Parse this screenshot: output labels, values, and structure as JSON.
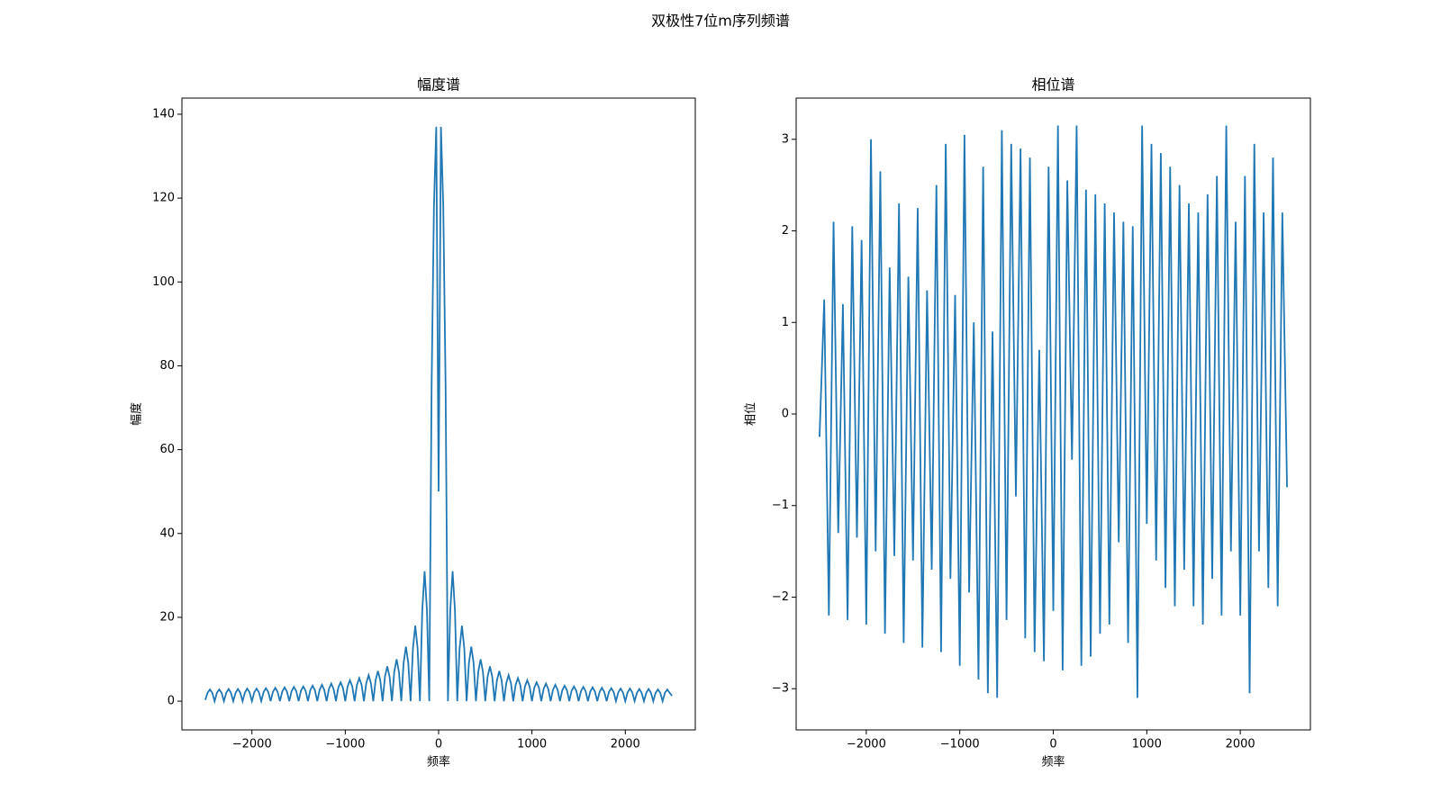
{
  "title": "双极性7位m序列频谱",
  "chart_data": [
    {
      "type": "line",
      "title": "幅度谱",
      "xlabel": "频率",
      "ylabel": "幅度",
      "color": "#1f77b4",
      "x": [
        -2500,
        -2475,
        -2450,
        -2425,
        -2400,
        -2375,
        -2350,
        -2325,
        -2300,
        -2275,
        -2250,
        -2225,
        -2200,
        -2175,
        -2150,
        -2125,
        -2100,
        -2075,
        -2050,
        -2025,
        -2000,
        -1975,
        -1950,
        -1925,
        -1900,
        -1875,
        -1850,
        -1825,
        -1800,
        -1775,
        -1750,
        -1725,
        -1700,
        -1675,
        -1650,
        -1625,
        -1600,
        -1575,
        -1550,
        -1525,
        -1500,
        -1475,
        -1450,
        -1425,
        -1400,
        -1375,
        -1350,
        -1325,
        -1300,
        -1275,
        -1250,
        -1225,
        -1200,
        -1175,
        -1150,
        -1125,
        -1100,
        -1075,
        -1050,
        -1025,
        -1000,
        -975,
        -950,
        -925,
        -900,
        -875,
        -850,
        -825,
        -800,
        -775,
        -750,
        -725,
        -700,
        -675,
        -650,
        -625,
        -600,
        -575,
        -550,
        -525,
        -500,
        -475,
        -450,
        -425,
        -400,
        -375,
        -350,
        -325,
        -300,
        -275,
        -250,
        -225,
        -200,
        -175,
        -150,
        -125,
        -100,
        -75,
        -50,
        -25,
        0,
        25,
        50,
        75,
        100,
        125,
        150,
        175,
        200,
        225,
        250,
        275,
        300,
        325,
        350,
        375,
        400,
        425,
        450,
        475,
        500,
        525,
        550,
        575,
        600,
        625,
        650,
        675,
        700,
        725,
        750,
        775,
        800,
        825,
        850,
        875,
        900,
        925,
        950,
        975,
        1000,
        1025,
        1050,
        1075,
        1100,
        1125,
        1150,
        1175,
        1200,
        1225,
        1250,
        1275,
        1300,
        1325,
        1350,
        1375,
        1400,
        1425,
        1450,
        1475,
        1500,
        1525,
        1550,
        1575,
        1600,
        1625,
        1650,
        1675,
        1700,
        1725,
        1750,
        1775,
        1800,
        1825,
        1850,
        1875,
        1900,
        1925,
        1950,
        1975,
        2000,
        2025,
        2050,
        2075,
        2100,
        2125,
        2150,
        2175,
        2200,
        2225,
        2250,
        2275,
        2300,
        2325,
        2350,
        2375,
        2400,
        2425,
        2450,
        2475,
        2500
      ],
      "values": [
        0.3,
        2.0,
        2.8,
        2.0,
        0,
        2.0,
        2.8,
        2.0,
        0,
        2.0,
        2.9,
        2.0,
        0,
        2.0,
        2.9,
        2.0,
        0,
        2.1,
        3.0,
        2.1,
        0,
        2.1,
        3.0,
        2.1,
        0,
        2.2,
        3.1,
        2.2,
        0,
        2.2,
        3.2,
        2.2,
        0,
        2.3,
        3.3,
        2.3,
        0,
        2.4,
        3.4,
        2.4,
        0,
        2.5,
        3.5,
        2.5,
        0,
        2.6,
        3.7,
        2.6,
        0,
        2.7,
        3.9,
        2.7,
        0,
        2.9,
        4.2,
        2.9,
        0,
        3.2,
        4.5,
        3.2,
        0,
        3.5,
        5.0,
        3.5,
        0,
        3.9,
        5.5,
        3.9,
        0,
        4.3,
        6.2,
        4.3,
        0,
        5.0,
        7.2,
        5.0,
        0,
        5.8,
        8.3,
        5.8,
        0,
        7.0,
        10,
        7.0,
        0,
        9.1,
        13,
        9.1,
        0,
        12.6,
        18,
        12.6,
        0,
        21.7,
        31,
        21.7,
        0,
        75,
        118,
        137,
        50,
        137,
        118,
        75,
        0,
        21.7,
        31,
        21.7,
        0,
        12.6,
        18,
        12.6,
        0,
        9.1,
        13,
        9.1,
        0,
        7.0,
        10,
        7.0,
        0,
        5.8,
        8.3,
        5.8,
        0,
        5.0,
        7.2,
        5.0,
        0,
        4.3,
        6.2,
        4.3,
        0,
        3.9,
        5.5,
        3.9,
        0,
        3.5,
        5.0,
        3.5,
        0,
        3.2,
        4.5,
        3.2,
        0,
        2.9,
        4.2,
        2.9,
        0,
        2.7,
        3.9,
        2.7,
        0,
        2.6,
        3.7,
        2.6,
        0,
        2.5,
        3.5,
        2.5,
        0,
        2.4,
        3.4,
        2.4,
        0,
        2.3,
        3.3,
        2.3,
        0,
        2.2,
        3.2,
        2.2,
        0,
        2.2,
        3.1,
        2.2,
        0,
        2.1,
        3.0,
        2.1,
        0,
        2.1,
        3.0,
        2.1,
        0,
        2.0,
        2.9,
        2.0,
        0,
        2.0,
        2.9,
        2.0,
        0,
        2.0,
        2.8,
        2.0,
        0,
        2.0,
        2.8,
        2.0,
        1.3
      ],
      "xlim": [
        -2750,
        2750
      ],
      "xticks": [
        {
          "value": -2000,
          "label": "−2000"
        },
        {
          "value": -1000,
          "label": "−1000"
        },
        0,
        1000,
        2000
      ],
      "ylim": [
        -6.85,
        143.85
      ],
      "yticks": [
        0,
        20,
        40,
        60,
        80,
        100,
        120,
        140
      ]
    },
    {
      "type": "line",
      "title": "相位谱",
      "xlabel": "频率",
      "ylabel": "相位",
      "color": "#1f77b4",
      "x": [
        -2500,
        -2450,
        -2400,
        -2350,
        -2300,
        -2250,
        -2200,
        -2150,
        -2100,
        -2050,
        -2000,
        -1950,
        -1900,
        -1850,
        -1800,
        -1750,
        -1700,
        -1650,
        -1600,
        -1550,
        -1500,
        -1450,
        -1400,
        -1350,
        -1300,
        -1250,
        -1200,
        -1150,
        -1100,
        -1050,
        -1000,
        -950,
        -900,
        -850,
        -800,
        -750,
        -700,
        -650,
        -600,
        -550,
        -500,
        -450,
        -400,
        -350,
        -300,
        -250,
        -200,
        -150,
        -100,
        -50,
        0,
        50,
        100,
        150,
        200,
        250,
        300,
        350,
        400,
        450,
        500,
        550,
        600,
        650,
        700,
        750,
        800,
        850,
        900,
        950,
        1000,
        1050,
        1100,
        1150,
        1200,
        1250,
        1300,
        1350,
        1400,
        1450,
        1500,
        1550,
        1600,
        1650,
        1700,
        1750,
        1800,
        1850,
        1900,
        1950,
        2000,
        2050,
        2100,
        2150,
        2200,
        2250,
        2300,
        2350,
        2400,
        2450,
        2500
      ],
      "values": [
        -0.25,
        1.25,
        -2.2,
        2.1,
        -1.3,
        1.2,
        -2.25,
        2.05,
        -1.35,
        1.9,
        -2.3,
        3.0,
        -1.5,
        2.65,
        -2.4,
        1.6,
        -1.55,
        2.3,
        -2.5,
        1.5,
        -1.6,
        2.25,
        -2.55,
        1.35,
        -1.7,
        2.5,
        -2.6,
        2.95,
        -1.8,
        1.3,
        -2.75,
        3.05,
        -1.95,
        1.0,
        -2.9,
        2.7,
        -3.05,
        0.9,
        -3.1,
        3.1,
        -2.25,
        2.95,
        -0.9,
        2.9,
        -2.45,
        2.8,
        -2.6,
        0.7,
        -2.7,
        2.7,
        -2.15,
        3.15,
        -2.8,
        2.55,
        -0.5,
        3.15,
        -2.75,
        2.45,
        -2.65,
        2.4,
        -2.4,
        2.3,
        -2.3,
        2.2,
        -1.4,
        2.1,
        -2.5,
        2.05,
        -3.1,
        3.15,
        -1.2,
        2.95,
        -1.6,
        2.85,
        -1.9,
        2.7,
        -2.1,
        2.5,
        -1.7,
        2.3,
        -2.1,
        2.2,
        -2.3,
        2.4,
        -1.8,
        2.6,
        -2.2,
        3.15,
        -1.5,
        2.1,
        -2.2,
        2.6,
        -3.05,
        2.95,
        -1.5,
        2.2,
        -1.9,
        2.8,
        -2.1,
        2.2,
        -0.8
      ],
      "xlim": [
        -2750,
        2750
      ],
      "xticks": [
        {
          "value": -2000,
          "label": "−2000"
        },
        {
          "value": -1000,
          "label": "−1000"
        },
        0,
        1000,
        2000
      ],
      "ylim": [
        -3.45,
        3.45
      ],
      "yticks": [
        {
          "value": -3,
          "label": "−3"
        },
        {
          "value": -2,
          "label": "−2"
        },
        {
          "value": -1,
          "label": "−1"
        },
        0,
        1,
        2,
        3
      ]
    }
  ]
}
